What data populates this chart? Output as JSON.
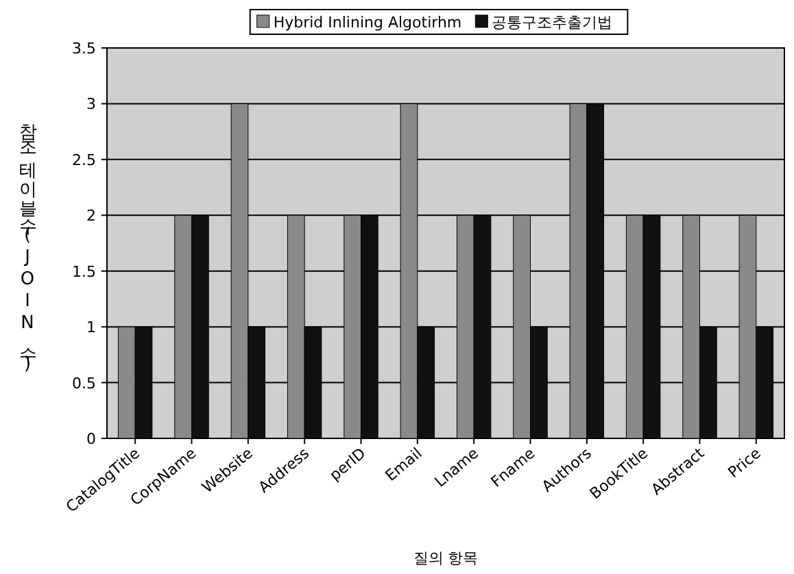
{
  "chart_data": {
    "type": "bar",
    "xlabel": "질의 항목",
    "ylabel": "참조테이블수(JOIN수)",
    "categories": [
      "CatalogTitle",
      "CorpName",
      "Website",
      "Address",
      "perID",
      "Email",
      "Lname",
      "Fname",
      "Authors",
      "BookTitle",
      "Abstract",
      "Price"
    ],
    "series": [
      {
        "name": "Hybrid Inlining Algotirhm",
        "color": "#8a8a8a",
        "values": [
          1,
          2,
          3,
          2,
          2,
          3,
          2,
          2,
          3,
          2,
          2,
          2
        ]
      },
      {
        "name": "공통구조추출기법",
        "color": "#111111",
        "values": [
          1,
          2,
          1,
          1,
          2,
          1,
          2,
          1,
          3,
          2,
          1,
          1
        ]
      }
    ],
    "ylim": [
      0,
      3.5
    ],
    "yticks": [
      0,
      0.5,
      1,
      1.5,
      2,
      2.5,
      3,
      3.5
    ],
    "grid": "y",
    "legend": "top"
  }
}
